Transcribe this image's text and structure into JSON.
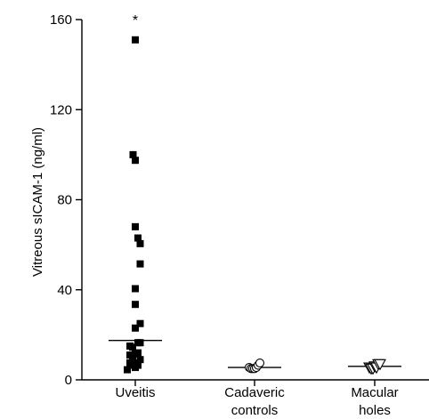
{
  "chart_data": {
    "type": "scatter",
    "title": "",
    "xlabel": "",
    "ylabel": "Vitreous sICAM-1 (ng/ml)",
    "ylim": [
      0,
      160
    ],
    "yticks": [
      0,
      40,
      80,
      120,
      160
    ],
    "grid": false,
    "categories": [
      {
        "lines": [
          "Uveitis"
        ]
      },
      {
        "lines": [
          "Cadaveric",
          "controls"
        ]
      },
      {
        "lines": [
          "Macular",
          "holes"
        ]
      }
    ],
    "series": [
      {
        "category": 0,
        "marker": "filled-square",
        "color": "#000000",
        "median": 17.5,
        "points": [
          {
            "offset": 0.0,
            "y": 151
          },
          {
            "offset": -0.25,
            "y": 100
          },
          {
            "offset": 0.0,
            "y": 97.5
          },
          {
            "offset": 0.0,
            "y": 68
          },
          {
            "offset": 0.3,
            "y": 63
          },
          {
            "offset": 0.55,
            "y": 60.5
          },
          {
            "offset": 0.55,
            "y": 51.5
          },
          {
            "offset": 0.0,
            "y": 40.5
          },
          {
            "offset": 0.0,
            "y": 33.5
          },
          {
            "offset": 0.55,
            "y": 25
          },
          {
            "offset": 0.0,
            "y": 23
          },
          {
            "offset": -0.6,
            "y": 15
          },
          {
            "offset": -0.3,
            "y": 14.5
          },
          {
            "offset": 0.3,
            "y": 16.5
          },
          {
            "offset": 0.55,
            "y": 16.5
          },
          {
            "offset": -0.6,
            "y": 11
          },
          {
            "offset": -0.3,
            "y": 10
          },
          {
            "offset": 0.0,
            "y": 11.5
          },
          {
            "offset": 0.3,
            "y": 12
          },
          {
            "offset": -0.6,
            "y": 7.5
          },
          {
            "offset": 0.0,
            "y": 7.5
          },
          {
            "offset": 0.55,
            "y": 9
          },
          {
            "offset": -0.3,
            "y": 6.5
          },
          {
            "offset": 0.3,
            "y": 6.5
          },
          {
            "offset": -0.9,
            "y": 4.5
          },
          {
            "offset": 0.0,
            "y": 5.5
          }
        ]
      },
      {
        "category": 1,
        "marker": "open-circle",
        "color": "#000000",
        "median": 5.5,
        "points": [
          {
            "offset": -0.6,
            "y": 5.5
          },
          {
            "offset": -0.4,
            "y": 5
          },
          {
            "offset": -0.2,
            "y": 5
          },
          {
            "offset": 0.0,
            "y": 5
          },
          {
            "offset": 0.2,
            "y": 5.5
          },
          {
            "offset": 0.4,
            "y": 6.5
          },
          {
            "offset": 0.6,
            "y": 7.5
          }
        ]
      },
      {
        "category": 2,
        "marker": "open-triangle-down",
        "color": "#000000",
        "median": 6,
        "points": [
          {
            "offset": -0.6,
            "y": 5.5
          },
          {
            "offset": -0.4,
            "y": 5
          },
          {
            "offset": -0.2,
            "y": 5
          },
          {
            "offset": 0.0,
            "y": 6
          },
          {
            "offset": 0.2,
            "y": 5.5
          },
          {
            "offset": 0.4,
            "y": 7
          },
          {
            "offset": 0.6,
            "y": 7
          }
        ]
      }
    ],
    "annotations": [
      {
        "category": 0,
        "y": 160,
        "text": "*"
      }
    ]
  }
}
